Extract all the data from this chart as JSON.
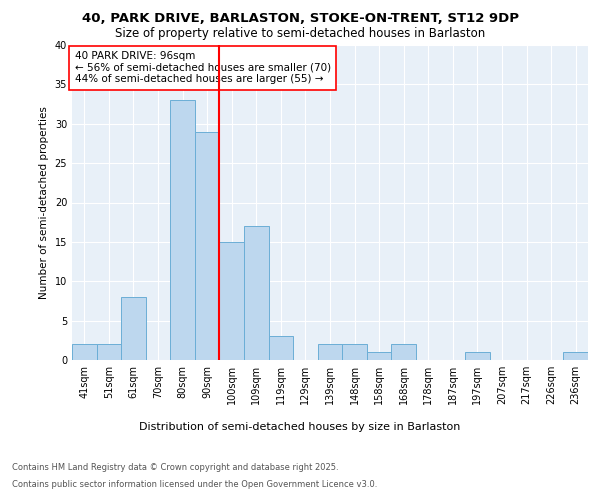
{
  "title_line1": "40, PARK DRIVE, BARLASTON, STOKE-ON-TRENT, ST12 9DP",
  "title_line2": "Size of property relative to semi-detached houses in Barlaston",
  "xlabel": "Distribution of semi-detached houses by size in Barlaston",
  "ylabel": "Number of semi-detached properties",
  "categories": [
    "41sqm",
    "51sqm",
    "61sqm",
    "70sqm",
    "80sqm",
    "90sqm",
    "100sqm",
    "109sqm",
    "119sqm",
    "129sqm",
    "139sqm",
    "148sqm",
    "158sqm",
    "168sqm",
    "178sqm",
    "187sqm",
    "197sqm",
    "207sqm",
    "217sqm",
    "226sqm",
    "236sqm"
  ],
  "values": [
    2,
    2,
    8,
    0,
    33,
    29,
    15,
    17,
    3,
    0,
    2,
    2,
    1,
    2,
    0,
    0,
    1,
    0,
    0,
    0,
    1
  ],
  "bar_color": "#BDD7EE",
  "bar_edge_color": "#6BAED6",
  "property_line_x": 5.5,
  "property_sqm": 96,
  "pct_smaller": 56,
  "count_smaller": 70,
  "pct_larger": 44,
  "count_larger": 55,
  "annotation_label": "40 PARK DRIVE: 96sqm",
  "annotation_smaller": "← 56% of semi-detached houses are smaller (70)",
  "annotation_larger": "44% of semi-detached houses are larger (55) →",
  "ylim": [
    0,
    40
  ],
  "yticks": [
    0,
    5,
    10,
    15,
    20,
    25,
    30,
    35,
    40
  ],
  "background_color": "#E8F0F8",
  "grid_color": "#FFFFFF",
  "footnote1": "Contains HM Land Registry data © Crown copyright and database right 2025.",
  "footnote2": "Contains public sector information licensed under the Open Government Licence v3.0."
}
